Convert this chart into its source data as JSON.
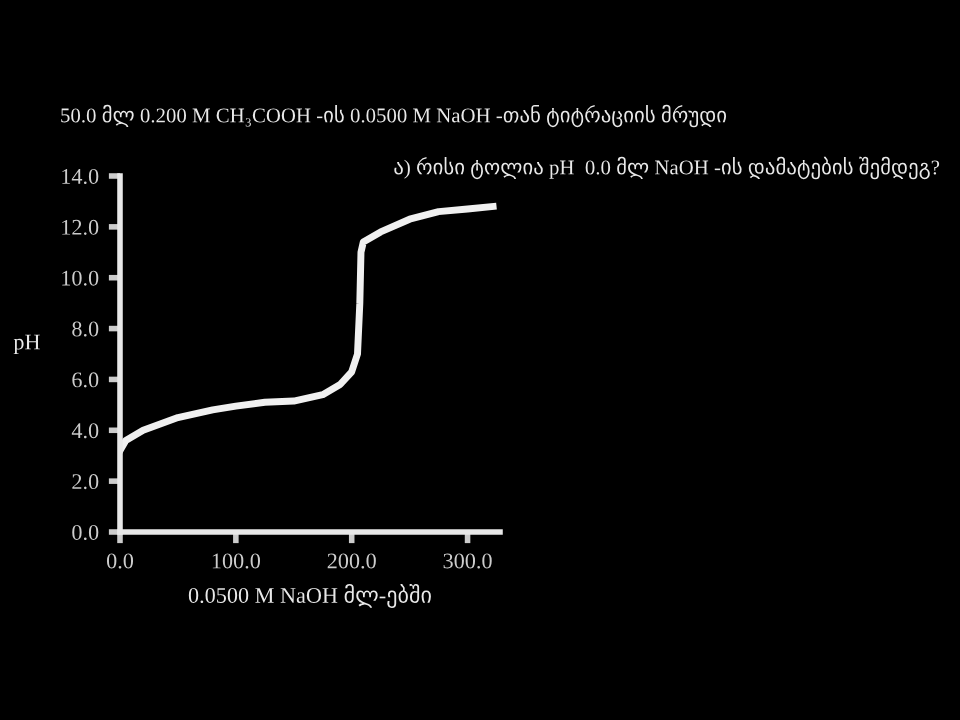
{
  "chart_data": {
    "type": "line",
    "title": "50.0 მლ 0.200 M CH₃COOH -ის 0.0500 M NaOH -თან ტიტრაციის მრუდი",
    "annotations": [
      "ა) რისი ტოლია pH  0.0 მლ NaOH -ის დამატების შემდეგ?"
    ],
    "xlabel": "0.0500 M NaOH მლ-ებში",
    "ylabel": "pH",
    "series": [
      {
        "color": "#f0f0f0",
        "x": [
          0,
          5,
          20,
          50,
          80,
          100,
          125,
          150,
          175,
          190,
          200,
          205,
          207,
          208,
          210,
          225,
          250,
          275,
          300,
          322
        ],
        "values": [
          3.2,
          3.6,
          4.0,
          4.5,
          4.8,
          4.95,
          5.1,
          5.15,
          5.4,
          5.8,
          6.3,
          7.0,
          9.0,
          11.0,
          11.4,
          11.8,
          12.3,
          12.6,
          12.7,
          12.8
        ]
      }
    ],
    "xlim": [
      0,
      328
    ],
    "ylim": [
      0,
      14
    ],
    "xticks": [
      {
        "value": 0,
        "label": "0.0"
      },
      {
        "value": 100,
        "label": "100.0"
      },
      {
        "value": 200,
        "label": "200.0"
      },
      {
        "value": 300,
        "label": "300.0"
      }
    ],
    "yticks": [
      {
        "value": 0,
        "label": "0.0"
      },
      {
        "value": 2,
        "label": "2.0"
      },
      {
        "value": 4,
        "label": "4.0"
      },
      {
        "value": 6,
        "label": "6.0"
      },
      {
        "value": 8,
        "label": "8.0"
      },
      {
        "value": 10,
        "label": "10.0"
      },
      {
        "value": 12,
        "label": "12.0"
      },
      {
        "value": 14,
        "label": "14.0"
      }
    ],
    "grid": false,
    "legend": false,
    "marker": "none",
    "line_style": "solid"
  }
}
